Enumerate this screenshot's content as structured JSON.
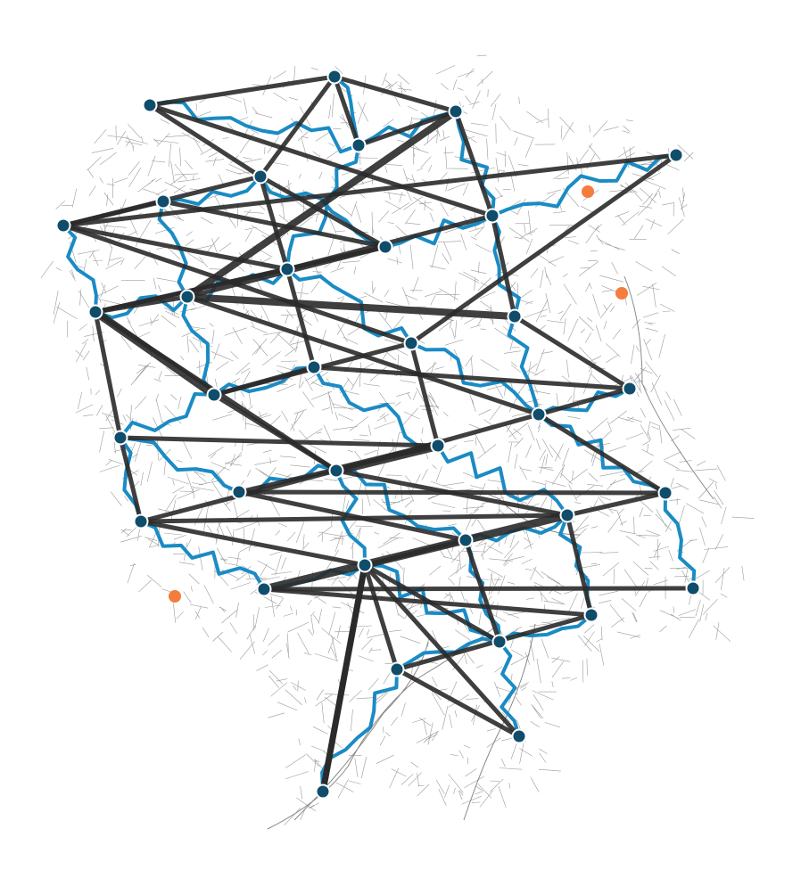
{
  "map": {
    "colors": {
      "background": "#ffffff",
      "streets": "#9b9b9b",
      "route": "#1a8bc4",
      "link": "#2a2a2a",
      "node_fill": "#0f4d6b",
      "node_stroke": "#ffffff",
      "poi": "#f47c3c"
    },
    "nodes": [
      {
        "id": "n01"
      },
      {
        "id": "n02"
      },
      {
        "id": "n03"
      },
      {
        "id": "n04"
      },
      {
        "id": "n05"
      },
      {
        "id": "n06"
      },
      {
        "id": "n07"
      },
      {
        "id": "n08"
      },
      {
        "id": "n09"
      },
      {
        "id": "n10"
      },
      {
        "id": "n11"
      },
      {
        "id": "n12"
      },
      {
        "id": "n13"
      },
      {
        "id": "n14"
      },
      {
        "id": "n15"
      },
      {
        "id": "n16"
      },
      {
        "id": "n17"
      },
      {
        "id": "n18"
      },
      {
        "id": "n19"
      },
      {
        "id": "n20"
      },
      {
        "id": "n21"
      },
      {
        "id": "n22"
      },
      {
        "id": "n23"
      },
      {
        "id": "n24"
      },
      {
        "id": "n25"
      },
      {
        "id": "n26"
      },
      {
        "id": "n27"
      },
      {
        "id": "n28"
      },
      {
        "id": "n29"
      },
      {
        "id": "n30"
      },
      {
        "id": "n31"
      },
      {
        "id": "n32"
      },
      {
        "id": "n33"
      },
      {
        "id": "n34"
      }
    ],
    "links": [
      [
        "n01",
        "n02"
      ],
      [
        "n01",
        "n04"
      ],
      [
        "n01",
        "n06"
      ],
      [
        "n02",
        "n04"
      ],
      [
        "n02",
        "n07"
      ],
      [
        "n02",
        "n12"
      ],
      [
        "n03",
        "n06"
      ],
      [
        "n03",
        "n07"
      ],
      [
        "n05",
        "n11"
      ],
      [
        "n05",
        "n15"
      ],
      [
        "n06",
        "n09"
      ],
      [
        "n06",
        "n10"
      ],
      [
        "n06",
        "n11"
      ],
      [
        "n07",
        "n10"
      ],
      [
        "n07",
        "n13"
      ],
      [
        "n08",
        "n09"
      ],
      [
        "n08",
        "n11"
      ],
      [
        "n09",
        "n12"
      ],
      [
        "n09",
        "n14"
      ],
      [
        "n10",
        "n11"
      ],
      [
        "n10",
        "n14"
      ],
      [
        "n10",
        "n16"
      ],
      [
        "n11",
        "n15"
      ],
      [
        "n12",
        "n13"
      ],
      [
        "n12",
        "n14"
      ],
      [
        "n12",
        "n19"
      ],
      [
        "n13",
        "n18"
      ],
      [
        "n14",
        "n17"
      ],
      [
        "n14",
        "n20"
      ],
      [
        "n14",
        "n22"
      ],
      [
        "n15",
        "n17"
      ],
      [
        "n15",
        "n21"
      ],
      [
        "n16",
        "n17"
      ],
      [
        "n16",
        "n18"
      ],
      [
        "n17",
        "n22"
      ],
      [
        "n18",
        "n19"
      ],
      [
        "n19",
        "n22"
      ],
      [
        "n19",
        "n24"
      ],
      [
        "n20",
        "n21"
      ],
      [
        "n20",
        "n25"
      ],
      [
        "n21",
        "n22"
      ],
      [
        "n21",
        "n23"
      ],
      [
        "n22",
        "n25"
      ],
      [
        "n22",
        "n26"
      ],
      [
        "n23",
        "n24"
      ],
      [
        "n23",
        "n27"
      ],
      [
        "n24",
        "n26"
      ],
      [
        "n25",
        "n26"
      ],
      [
        "n25",
        "n29"
      ],
      [
        "n26",
        "n30"
      ],
      [
        "n26",
        "n31"
      ],
      [
        "n27",
        "n29"
      ],
      [
        "n27",
        "n32"
      ],
      [
        "n28",
        "n30"
      ],
      [
        "n29",
        "n32"
      ],
      [
        "n29",
        "n33"
      ],
      [
        "n29",
        "n34"
      ],
      [
        "n30",
        "n31"
      ],
      [
        "n31",
        "n33"
      ],
      [
        "n33",
        "n34"
      ],
      [
        "n01",
        "n03"
      ]
    ],
    "poi": [
      {
        "id": "poi-1"
      },
      {
        "id": "poi-2"
      },
      {
        "id": "poi-3"
      }
    ]
  }
}
